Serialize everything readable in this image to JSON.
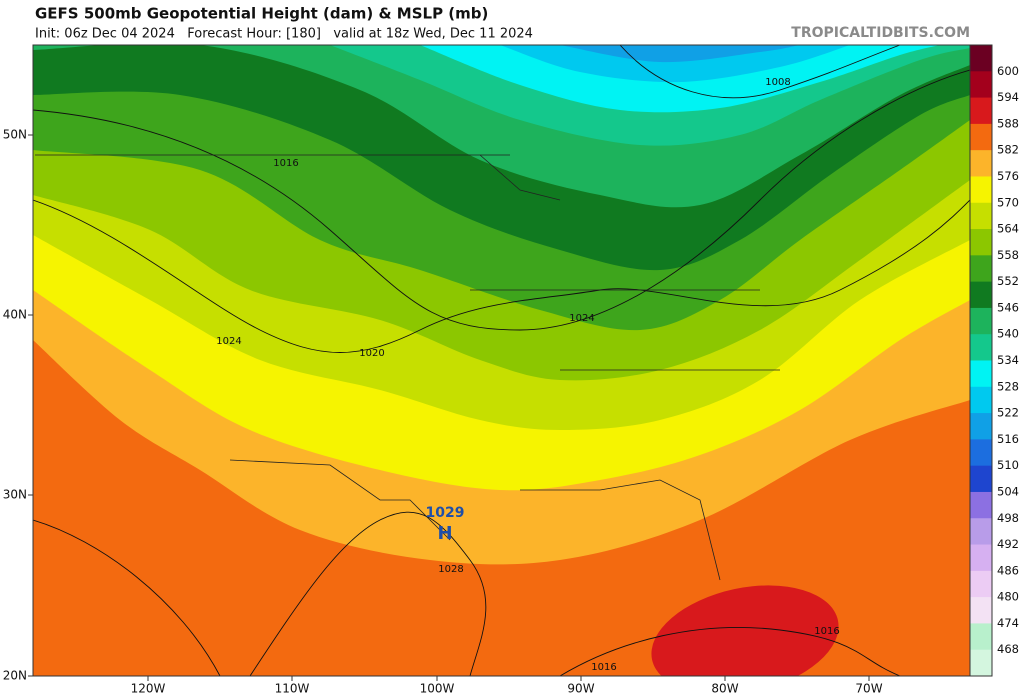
{
  "header": {
    "title": "GEFS 500mb Geopotential Height (dam) & MSLP (mb)",
    "subtitle": "Init: 06z Dec 04 2024   Forecast Hour: [180]   valid at 18z Wed, Dec 11 2024",
    "watermark": "TROPICALTIDBITS.COM"
  },
  "colorbar": {
    "levels": [
      "600",
      "594",
      "588",
      "582",
      "576",
      "570",
      "564",
      "558",
      "552",
      "546",
      "540",
      "534",
      "528",
      "522",
      "516",
      "510",
      "504",
      "498",
      "492",
      "486",
      "480",
      "474",
      "468"
    ],
    "colors": [
      "#6b0022",
      "#a3001c",
      "#d8191c",
      "#f36a10",
      "#fcb42a",
      "#f6f400",
      "#c6df00",
      "#8cc700",
      "#3ea51c",
      "#107a20",
      "#1db35c",
      "#14c88c",
      "#00f3f3",
      "#00c9ef",
      "#10a0e6",
      "#1c6edf",
      "#1e45cf",
      "#8c70e2",
      "#b89ce9",
      "#d6b0f1",
      "#ecccf4",
      "#f3e2f4",
      "#b8f0cc",
      "#d4f6df"
    ]
  },
  "axes": {
    "lat_labels": [
      "50N",
      "40N",
      "30N",
      "20N"
    ],
    "lon_labels": [
      "120W",
      "110W",
      "100W",
      "90W",
      "80W",
      "70W"
    ]
  },
  "map": {
    "high": {
      "pressure": "1029",
      "symbol": "H"
    },
    "isobar_labels": [
      "1016",
      "1024",
      "1020",
      "1024",
      "1028",
      "1016",
      "1016",
      "1008"
    ]
  }
}
